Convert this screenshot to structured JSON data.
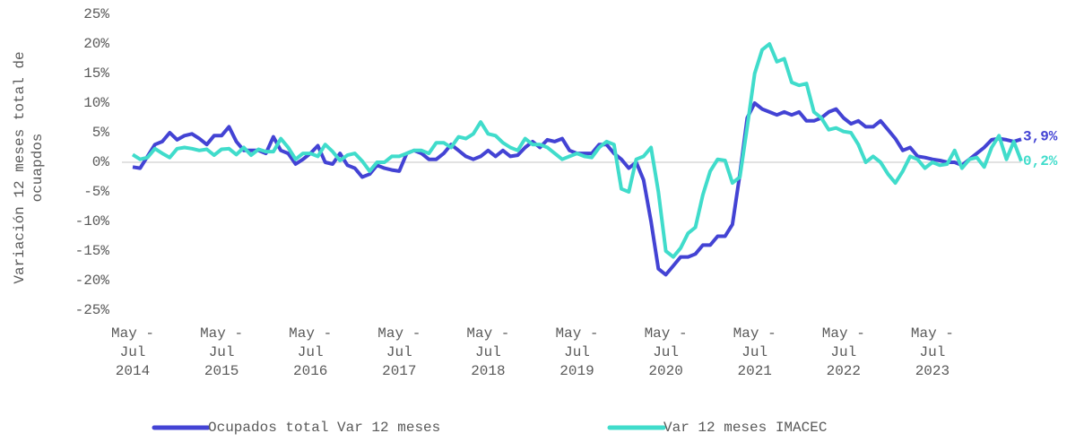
{
  "chart_data": {
    "type": "line",
    "y_label": "Variación 12 meses total de ocuapdos",
    "categories": [
      "May - Jul 2014",
      null,
      null,
      null,
      null,
      null,
      null,
      null,
      null,
      null,
      null,
      null,
      "May - Jul 2015",
      null,
      null,
      null,
      null,
      null,
      null,
      null,
      null,
      null,
      null,
      null,
      "May - Jul 2016",
      null,
      null,
      null,
      null,
      null,
      null,
      null,
      null,
      null,
      null,
      null,
      "May - Jul 2017",
      null,
      null,
      null,
      null,
      null,
      null,
      null,
      null,
      null,
      null,
      null,
      "May - Jul 2018",
      null,
      null,
      null,
      null,
      null,
      null,
      null,
      null,
      null,
      null,
      null,
      "May - Jul 2019",
      null,
      null,
      null,
      null,
      null,
      null,
      null,
      null,
      null,
      null,
      null,
      "May - Jul 2020",
      null,
      null,
      null,
      null,
      null,
      null,
      null,
      null,
      null,
      null,
      null,
      "May - Jul 2021",
      null,
      null,
      null,
      null,
      null,
      null,
      null,
      null,
      null,
      null,
      null,
      "May - Jul 2022",
      null,
      null,
      null,
      null,
      null,
      null,
      null,
      null,
      null,
      null,
      null,
      "May - Jul 2023",
      null,
      null,
      null,
      null,
      null,
      null,
      null,
      null,
      null,
      null,
      null,
      null
    ],
    "series": [
      {
        "name": "Ocupados total Var 12 meses",
        "color": "#4343d4",
        "values": [
          -0.8,
          -1,
          1,
          3,
          3.5,
          5,
          3.8,
          4.5,
          4.8,
          4,
          3,
          4.5,
          4.5,
          6,
          3.5,
          2,
          2,
          2,
          1.5,
          4.3,
          2,
          1.5,
          -0.3,
          0.5,
          1.5,
          2.8,
          0,
          -0.3,
          1.5,
          -0.5,
          -1,
          -2.5,
          -2,
          -0.5,
          -1,
          -1.3,
          -1.5,
          1.5,
          2,
          1.5,
          0.5,
          0.5,
          1.5,
          3,
          2,
          1,
          0.5,
          1,
          2,
          1,
          2,
          1,
          1.2,
          2.5,
          3.5,
          2.5,
          3.8,
          3.5,
          4,
          2,
          1.5,
          1.5,
          1.5,
          3,
          3,
          1.5,
          0.5,
          -1,
          0,
          -3,
          -10,
          -18,
          -19,
          -17.5,
          -16,
          -16,
          -15.5,
          -14,
          -14,
          -12.5,
          -12.5,
          -10.5,
          -2,
          7.5,
          10,
          9,
          8.5,
          8,
          8.5,
          8,
          8.5,
          7,
          7,
          7.5,
          8.5,
          9,
          7.5,
          6.5,
          7,
          6,
          6,
          7,
          5.5,
          4,
          2,
          2.5,
          1,
          0.8,
          0.5,
          0.3,
          0,
          0,
          -0.5,
          0.5,
          1.5,
          2.5,
          3.8,
          4,
          3.8,
          3.5,
          3.9
        ],
        "value_labels": [
          null,
          null,
          null,
          null,
          null,
          null,
          null,
          null,
          null,
          null,
          null,
          null,
          null,
          null,
          null,
          null,
          null,
          null,
          null,
          null,
          null,
          null,
          null,
          null,
          null,
          null,
          null,
          null,
          null,
          null,
          null,
          null,
          null,
          null,
          null,
          null,
          null,
          null,
          null,
          null,
          null,
          null,
          null,
          null,
          null,
          null,
          null,
          null,
          null,
          null,
          null,
          null,
          null,
          null,
          null,
          null,
          null,
          null,
          null,
          null,
          null,
          null,
          null,
          null,
          null,
          null,
          null,
          null,
          null,
          null,
          null,
          null,
          null,
          null,
          null,
          null,
          null,
          null,
          null,
          null,
          null,
          null,
          null,
          null,
          null,
          null,
          null,
          null,
          null,
          null,
          null,
          null,
          null,
          null,
          null,
          null,
          null,
          null,
          null,
          null,
          null,
          null,
          null,
          null,
          null,
          null,
          null,
          null,
          null,
          null,
          null,
          null,
          null,
          null,
          null,
          null,
          null,
          null,
          null,
          null,
          "3,9%"
        ]
      },
      {
        "name": "Var 12 meses IMACEC",
        "color": "#40dccb",
        "values": [
          1.3,
          0.5,
          0.8,
          2.3,
          1.5,
          0.8,
          2.3,
          2.5,
          2.3,
          2,
          2.2,
          1.2,
          2.2,
          2.3,
          1.3,
          2.5,
          1.2,
          2.2,
          1.8,
          1.8,
          4,
          2.5,
          0.5,
          1.5,
          1.5,
          1,
          3,
          1.8,
          0.3,
          1.2,
          1.5,
          0.2,
          -1.5,
          0,
          0,
          1,
          1,
          1.5,
          2,
          2,
          1.5,
          3.3,
          3.3,
          2.5,
          4.3,
          4,
          4.8,
          6.8,
          4.8,
          4.5,
          3.3,
          2.5,
          2,
          4,
          3,
          3,
          2.5,
          1.5,
          0.5,
          1,
          1.5,
          1,
          0.8,
          2.5,
          3.5,
          3,
          -4.5,
          -5,
          0.5,
          1,
          2.5,
          -5,
          -15,
          -16,
          -14.5,
          -12,
          -11,
          -5.5,
          -1.5,
          0.5,
          0.3,
          -3.5,
          -2.5,
          6,
          15,
          19,
          20,
          17,
          17.5,
          13.5,
          13,
          13.3,
          8.5,
          7.5,
          5.5,
          5.8,
          5.2,
          5,
          3,
          0,
          1,
          0,
          -2,
          -3.5,
          -1.5,
          1,
          0.5,
          -1,
          0,
          -0.5,
          -0.3,
          2,
          -1,
          0.5,
          0.8,
          -0.8,
          2.5,
          4.5,
          0.5,
          3.5,
          0.2
        ],
        "value_labels": [
          null,
          null,
          null,
          null,
          null,
          null,
          null,
          null,
          null,
          null,
          null,
          null,
          null,
          null,
          null,
          null,
          null,
          null,
          null,
          null,
          null,
          null,
          null,
          null,
          null,
          null,
          null,
          null,
          null,
          null,
          null,
          null,
          null,
          null,
          null,
          null,
          null,
          null,
          null,
          null,
          null,
          null,
          null,
          null,
          null,
          null,
          null,
          null,
          null,
          null,
          null,
          null,
          null,
          null,
          null,
          null,
          null,
          null,
          null,
          null,
          null,
          null,
          null,
          null,
          null,
          null,
          null,
          null,
          null,
          null,
          null,
          null,
          null,
          null,
          null,
          null,
          null,
          null,
          null,
          null,
          null,
          null,
          null,
          null,
          null,
          null,
          null,
          null,
          null,
          null,
          null,
          null,
          null,
          null,
          null,
          null,
          null,
          null,
          null,
          null,
          null,
          null,
          null,
          null,
          null,
          null,
          null,
          null,
          null,
          null,
          null,
          null,
          null,
          null,
          null,
          null,
          null,
          null,
          null,
          null,
          "0,2%"
        ]
      }
    ],
    "ylim": [
      -25,
      25
    ],
    "yticks": [
      {
        "value": -25,
        "label": "-25%"
      },
      {
        "value": -20,
        "label": "-20%"
      },
      {
        "value": -15,
        "label": "-15%"
      },
      {
        "value": -10,
        "label": "-10%"
      },
      {
        "value": -5,
        "label": "-5%"
      },
      {
        "value": 0,
        "label": "0%"
      },
      {
        "value": 5,
        "label": "5%"
      },
      {
        "value": 10,
        "label": "10%"
      },
      {
        "value": 15,
        "label": "15%"
      },
      {
        "value": 20,
        "label": "20%"
      },
      {
        "value": 25,
        "label": "25%"
      }
    ],
    "grid": false,
    "legend": "bottom"
  }
}
